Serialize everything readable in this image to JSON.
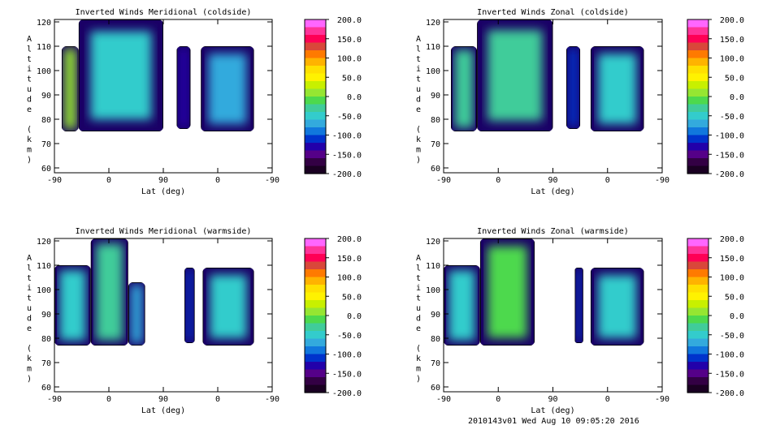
{
  "footer": "2010143v01 Wed Aug 10 09:05:20 2016",
  "colorbar": {
    "labels": [
      "200.0",
      "150.0",
      "100.0",
      "50.0",
      "0.0",
      "-50.0",
      "-100.0",
      "-150.0",
      "-200.0"
    ],
    "colors": [
      "#ff66ff",
      "#ff3399",
      "#ff0055",
      "#d9473a",
      "#ff7a00",
      "#ffb300",
      "#ffe000",
      "#fff200",
      "#c8f000",
      "#96e632",
      "#4dd94d",
      "#40cc9a",
      "#33cccc",
      "#33aadd",
      "#1177dd",
      "#0033cc",
      "#2200aa",
      "#550088",
      "#330044",
      "#1a0022"
    ]
  },
  "chart_data": [
    {
      "type": "heatmap",
      "title": "Inverted Winds Meridional (coldside)",
      "xlabel": "Lat (deg)",
      "ylabel": "Altitude (km)",
      "xtick_labels": [
        "-90",
        "0",
        "90",
        "0",
        "-90"
      ],
      "ytick_labels": [
        "60",
        "70",
        "80",
        "90",
        "100",
        "110",
        "120"
      ],
      "ylim": [
        58,
        121
      ],
      "colorbar_range": [
        -200,
        200
      ],
      "regions": [
        {
          "lat_range": [
            -78,
            -50
          ],
          "alt_range": [
            75,
            110
          ],
          "mean_wind": 10
        },
        {
          "lat_range": [
            -50,
            90
          ],
          "alt_range": [
            75,
            121
          ],
          "mean_wind": -40
        },
        {
          "lat_range": [
            112,
            135
          ],
          "alt_range": [
            76,
            110
          ],
          "mean_wind": -120
        },
        {
          "lat_range": [
            152,
            240
          ],
          "alt_range": [
            75,
            110
          ],
          "mean_wind": -60
        }
      ]
    },
    {
      "type": "heatmap",
      "title": "Inverted Winds Zonal (coldside)",
      "xlabel": "Lat (deg)",
      "ylabel": "Altitude (km)",
      "xtick_labels": [
        "-90",
        "0",
        "90",
        "0",
        "-90"
      ],
      "ytick_labels": [
        "60",
        "70",
        "80",
        "90",
        "100",
        "110",
        "120"
      ],
      "ylim": [
        58,
        121
      ],
      "colorbar_range": [
        -200,
        200
      ],
      "regions": [
        {
          "lat_range": [
            -78,
            -35
          ],
          "alt_range": [
            75,
            110
          ],
          "mean_wind": -20
        },
        {
          "lat_range": [
            -35,
            90
          ],
          "alt_range": [
            75,
            121
          ],
          "mean_wind": -30
        },
        {
          "lat_range": [
            112,
            135
          ],
          "alt_range": [
            76,
            110
          ],
          "mean_wind": -110
        },
        {
          "lat_range": [
            152,
            240
          ],
          "alt_range": [
            75,
            110
          ],
          "mean_wind": -50
        }
      ]
    },
    {
      "type": "heatmap",
      "title": "Inverted Winds Meridional (warmside)",
      "xlabel": "Lat (deg)",
      "ylabel": "Altitude (km)",
      "xtick_labels": [
        "-90",
        "0",
        "90",
        "0",
        "-90"
      ],
      "ytick_labels": [
        "60",
        "70",
        "80",
        "90",
        "100",
        "110",
        "120"
      ],
      "ylim": [
        58,
        121
      ],
      "colorbar_range": [
        -200,
        200
      ],
      "regions": [
        {
          "lat_range": [
            -90,
            -30
          ],
          "alt_range": [
            77,
            110
          ],
          "mean_wind": -40
        },
        {
          "lat_range": [
            -30,
            32
          ],
          "alt_range": [
            77,
            121
          ],
          "mean_wind": -30
        },
        {
          "lat_range": [
            32,
            60
          ],
          "alt_range": [
            77,
            103
          ],
          "mean_wind": -60
        },
        {
          "lat_range": [
            125,
            142
          ],
          "alt_range": [
            78,
            109
          ],
          "mean_wind": -110
        },
        {
          "lat_range": [
            155,
            240
          ],
          "alt_range": [
            77,
            109
          ],
          "mean_wind": -50
        }
      ]
    },
    {
      "type": "heatmap",
      "title": "Inverted Winds Zonal (warmside)",
      "xlabel": "Lat (deg)",
      "ylabel": "Altitude (km)",
      "xtick_labels": [
        "-90",
        "0",
        "90",
        "0",
        "-90"
      ],
      "ytick_labels": [
        "60",
        "70",
        "80",
        "90",
        "100",
        "110",
        "120"
      ],
      "ylim": [
        58,
        121
      ],
      "colorbar_range": [
        -200,
        200
      ],
      "regions": [
        {
          "lat_range": [
            -90,
            -30
          ],
          "alt_range": [
            77,
            110
          ],
          "mean_wind": -40
        },
        {
          "lat_range": [
            -30,
            60
          ],
          "alt_range": [
            77,
            121
          ],
          "mean_wind": -10
        },
        {
          "lat_range": [
            126,
            140
          ],
          "alt_range": [
            78,
            109
          ],
          "mean_wind": -110
        },
        {
          "lat_range": [
            152,
            240
          ],
          "alt_range": [
            77,
            109
          ],
          "mean_wind": -40
        }
      ]
    }
  ]
}
